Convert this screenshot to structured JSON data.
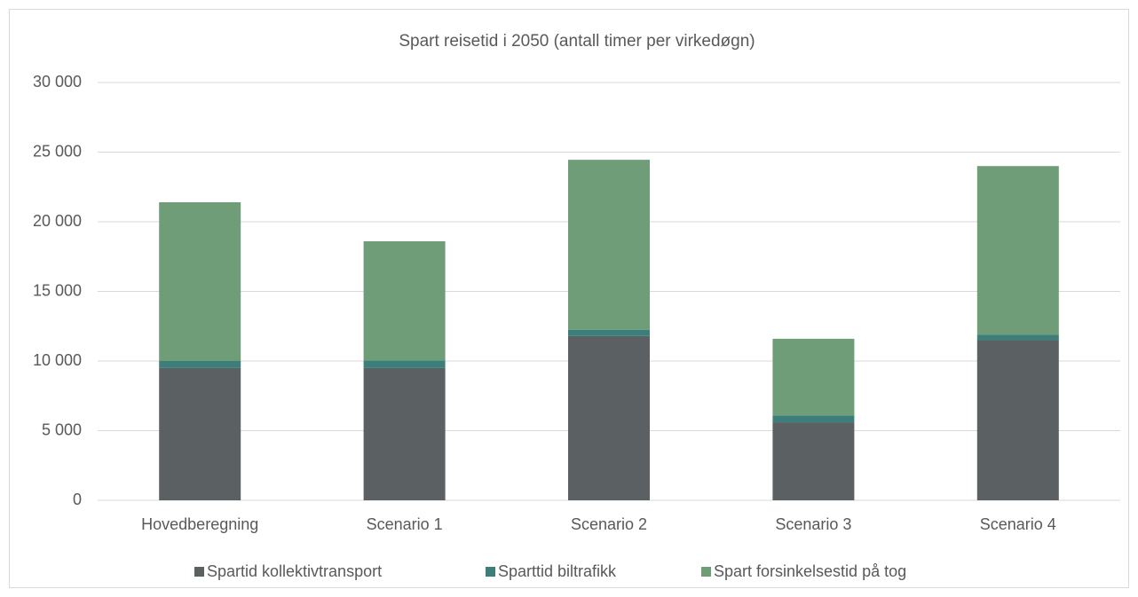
{
  "chart_data": {
    "type": "stacked_bar",
    "title": "Spart reisetid i 2050 (antall timer per virkedøgn)",
    "categories": [
      "Hovedberegning",
      "Scenario 1",
      "Scenario 2",
      "Scenario 3",
      "Scenario 4"
    ],
    "series": [
      {
        "name": "Spartid kollektivtransport",
        "color": "#5b6063",
        "values": [
          9500,
          9500,
          11800,
          5600,
          11500
        ]
      },
      {
        "name": "Sparttid biltrafikk",
        "color": "#3c7e7a",
        "values": [
          500,
          550,
          450,
          500,
          400
        ]
      },
      {
        "name": "Spart forsinkelsestid på tog",
        "color": "#6f9d78",
        "values": [
          11400,
          8550,
          12200,
          5500,
          12100
        ]
      }
    ],
    "ylim": [
      0,
      30000
    ],
    "yticks": [
      {
        "value": 0,
        "label": "0"
      },
      {
        "value": 5000,
        "label": "5 000"
      },
      {
        "value": 10000,
        "label": "10 000"
      },
      {
        "value": 15000,
        "label": "15 000"
      },
      {
        "value": 20000,
        "label": "20 000"
      },
      {
        "value": 25000,
        "label": "25 000"
      },
      {
        "value": 30000,
        "label": "30 000"
      }
    ],
    "grid": true,
    "legend": "bottom"
  }
}
